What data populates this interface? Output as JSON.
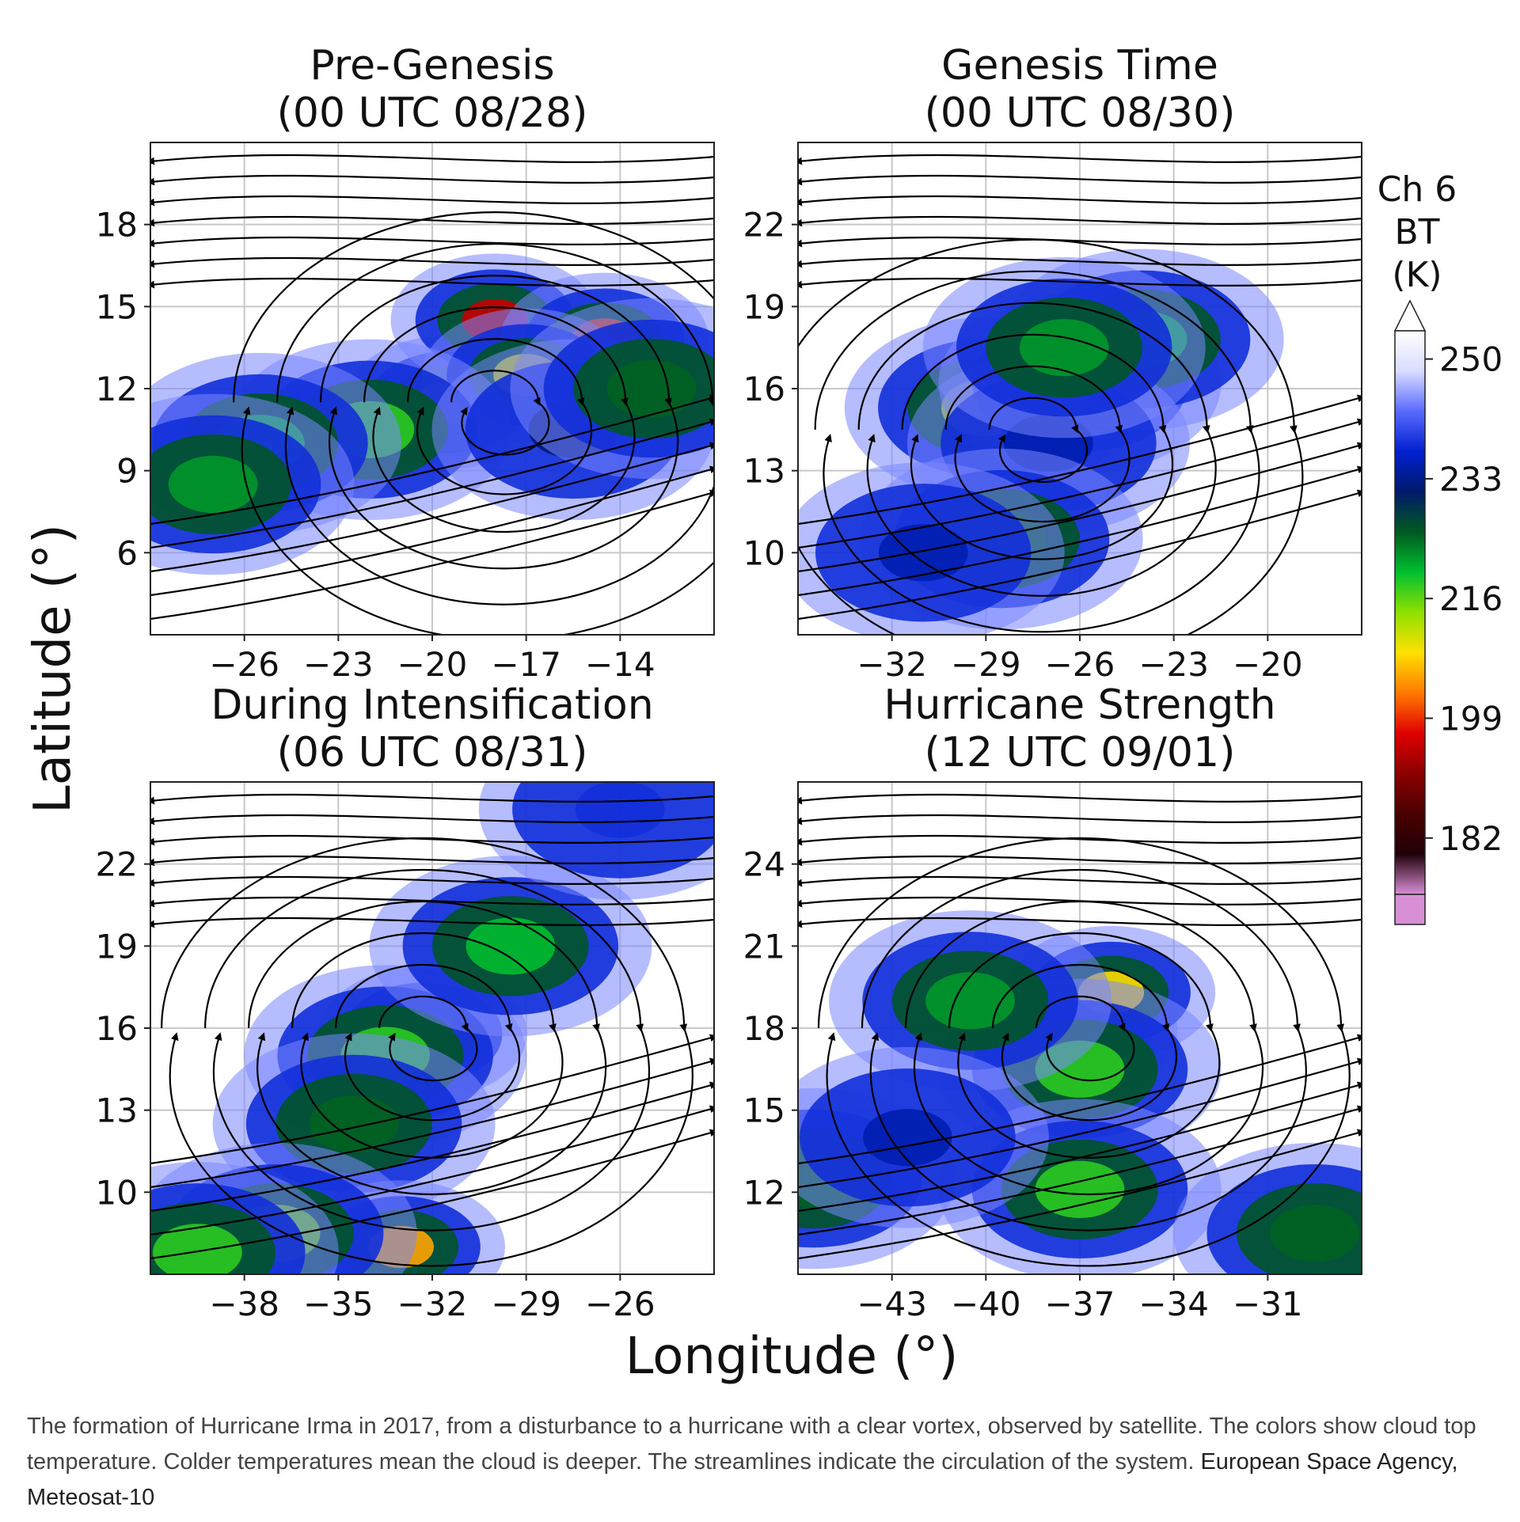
{
  "chart_data": {
    "type": "satellite-streamline-panels",
    "xlabel": "Longitude (°)",
    "ylabel": "Latitude (°)",
    "grid": true,
    "panels": [
      {
        "title_line1": "Pre-Genesis",
        "title_line2": "(00 UTC 08/28)",
        "xlim": [
          -29,
          -11
        ],
        "ylim": [
          3,
          21
        ],
        "xticks": [
          -26,
          -23,
          -20,
          -17,
          -14
        ],
        "yticks": [
          6,
          9,
          12,
          15,
          18
        ],
        "vortex_center": [
          -18,
          11.5
        ],
        "cold_clouds": [
          {
            "lon": -19.5,
            "lat": 11.5,
            "temp": 205
          },
          {
            "lon": -18,
            "lat": 14.5,
            "temp": 195
          },
          {
            "lon": -14.5,
            "lat": 13.8,
            "temp": 200
          },
          {
            "lon": -17,
            "lat": 12.5,
            "temp": 210
          },
          {
            "lon": -22,
            "lat": 10.5,
            "temp": 218
          },
          {
            "lon": -25.5,
            "lat": 10,
            "temp": 220
          },
          {
            "lon": -27,
            "lat": 8.5,
            "temp": 222
          },
          {
            "lon": -15.5,
            "lat": 10.5,
            "temp": 232
          },
          {
            "lon": -13,
            "lat": 12,
            "temp": 225
          }
        ]
      },
      {
        "title_line1": "Genesis Time",
        "title_line2": "(00 UTC 08/30)",
        "xlim": [
          -35,
          -17
        ],
        "ylim": [
          7,
          25
        ],
        "xticks": [
          -32,
          -29,
          -26,
          -23,
          -20
        ],
        "yticks": [
          10,
          13,
          16,
          19,
          22
        ],
        "vortex_center": [
          -27.5,
          14.5
        ],
        "cold_clouds": [
          {
            "lon": -29,
            "lat": 15.3,
            "temp": 212
          },
          {
            "lon": -26,
            "lat": 16.2,
            "temp": 214
          },
          {
            "lon": -24,
            "lat": 17.8,
            "temp": 220
          },
          {
            "lon": -27,
            "lat": 14,
            "temp": 235
          },
          {
            "lon": -28.5,
            "lat": 10.5,
            "temp": 225
          },
          {
            "lon": -31,
            "lat": 10,
            "temp": 235
          },
          {
            "lon": -26.5,
            "lat": 17.5,
            "temp": 222
          }
        ]
      },
      {
        "title_line1": "During Intensification",
        "title_line2": "(06 UTC 08/31)",
        "xlim": [
          -41,
          -23
        ],
        "ylim": [
          7,
          25
        ],
        "xticks": [
          -38,
          -35,
          -32,
          -29,
          -26
        ],
        "yticks": [
          10,
          13,
          16,
          19,
          22
        ],
        "vortex_center": [
          -32.3,
          16
        ],
        "cold_clouds": [
          {
            "lon": -32.3,
            "lat": 15.8,
            "temp": 202
          },
          {
            "lon": -33.5,
            "lat": 15,
            "temp": 218
          },
          {
            "lon": -29.5,
            "lat": 19,
            "temp": 220
          },
          {
            "lon": -34.5,
            "lat": 12.5,
            "temp": 225
          },
          {
            "lon": -33,
            "lat": 8,
            "temp": 205
          },
          {
            "lon": -37,
            "lat": 8.5,
            "temp": 215
          },
          {
            "lon": -39.5,
            "lat": 7.8,
            "temp": 218
          },
          {
            "lon": -26,
            "lat": 24,
            "temp": 238
          }
        ]
      },
      {
        "title_line1": "Hurricane Strength",
        "title_line2": "(12 UTC 09/01)",
        "xlim": [
          -46,
          -28
        ],
        "ylim": [
          9,
          27
        ],
        "xticks": [
          -43,
          -40,
          -37,
          -34,
          -31
        ],
        "yticks": [
          12,
          15,
          18,
          21,
          24
        ],
        "vortex_center": [
          -37,
          18
        ],
        "cold_clouds": [
          {
            "lon": -37.2,
            "lat": 17.9,
            "temp": 200
          },
          {
            "lon": -36,
            "lat": 19.3,
            "temp": 208
          },
          {
            "lon": -37,
            "lat": 16.5,
            "temp": 218
          },
          {
            "lon": -37,
            "lat": 12.1,
            "temp": 218
          },
          {
            "lon": -40.5,
            "lat": 19,
            "temp": 222
          },
          {
            "lon": -29.5,
            "lat": 10.5,
            "temp": 225
          },
          {
            "lon": -45.5,
            "lat": 12.5,
            "temp": 225
          },
          {
            "lon": -42.5,
            "lat": 14,
            "temp": 235
          }
        ]
      }
    ],
    "colorbar": {
      "label_line1": "Ch 6",
      "label_line2": "BT",
      "label_line3": "(K)",
      "min": 174,
      "max": 254,
      "ticks": [
        182,
        199,
        216,
        233,
        250
      ],
      "extend": "both",
      "colors": [
        "#d98fd6",
        "#200008",
        "#4a0000",
        "#8b0000",
        "#e00000",
        "#ff7a00",
        "#ffe000",
        "#90e000",
        "#00c030",
        "#005a20",
        "#001a6a",
        "#0020d0",
        "#5a6aff",
        "#d8dcff",
        "#ffffff"
      ]
    }
  },
  "caption": {
    "text": "The formation of Hurricane Irma in 2017, from a disturbance to a hurricane with a clear vortex, observed by satellite. The colors show cloud top temperature. Colder temperatures mean the cloud is deeper. The streamlines indicate the circulation of the system.",
    "credit": "European Space Agency, Meteosat-10"
  }
}
